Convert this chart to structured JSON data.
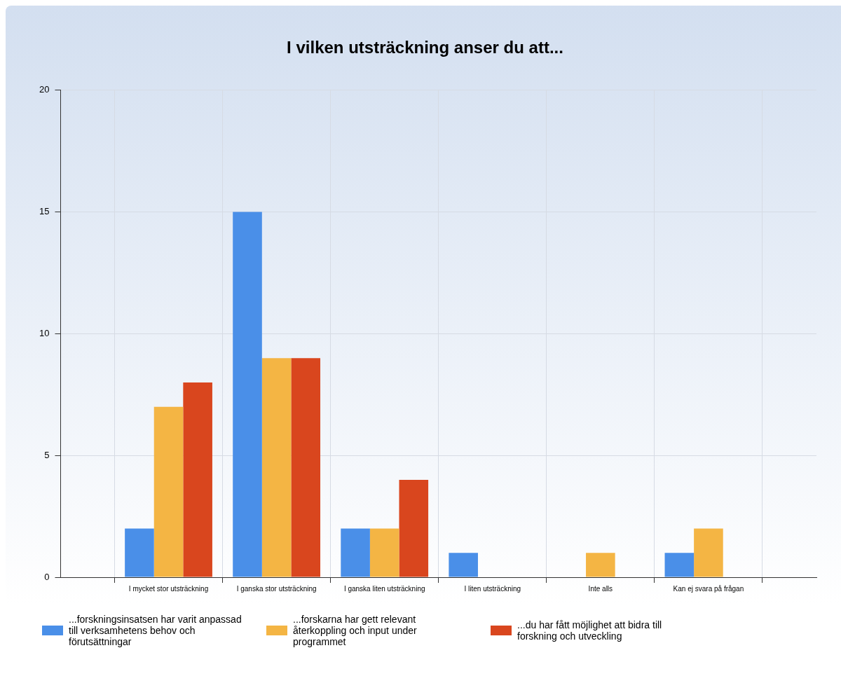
{
  "chart_data": {
    "type": "bar",
    "title": "I vilken utsträckning anser du att...",
    "categories": [
      null,
      "I mycket stor utsträckning",
      "I ganska stor utsträckning",
      "I ganska liten utsträckning",
      "I liten utsträckning",
      "Inte alls",
      "Kan ej svara på frågan",
      null
    ],
    "series": [
      {
        "name": "...forskningsinsatsen har varit anpassad till verksamhetens behov och förutsättningar",
        "color": "#4a8fe8",
        "values": [
          null,
          2,
          15,
          2,
          1,
          0,
          1,
          null
        ]
      },
      {
        "name": "...forskarna har gett relevant återkoppling och input under programmet",
        "color": "#f4b544",
        "values": [
          null,
          7,
          9,
          2,
          0,
          1,
          2,
          null
        ]
      },
      {
        "name": "...du har fått möjlighet att bidra till forskning och utveckling",
        "color": "#d9461e",
        "values": [
          null,
          8,
          9,
          4,
          0,
          0,
          0,
          null
        ]
      }
    ],
    "ylim": [
      0,
      20
    ],
    "yticks": [
      0,
      5,
      10,
      15,
      20
    ],
    "grid": true,
    "legend": "bottom left"
  }
}
